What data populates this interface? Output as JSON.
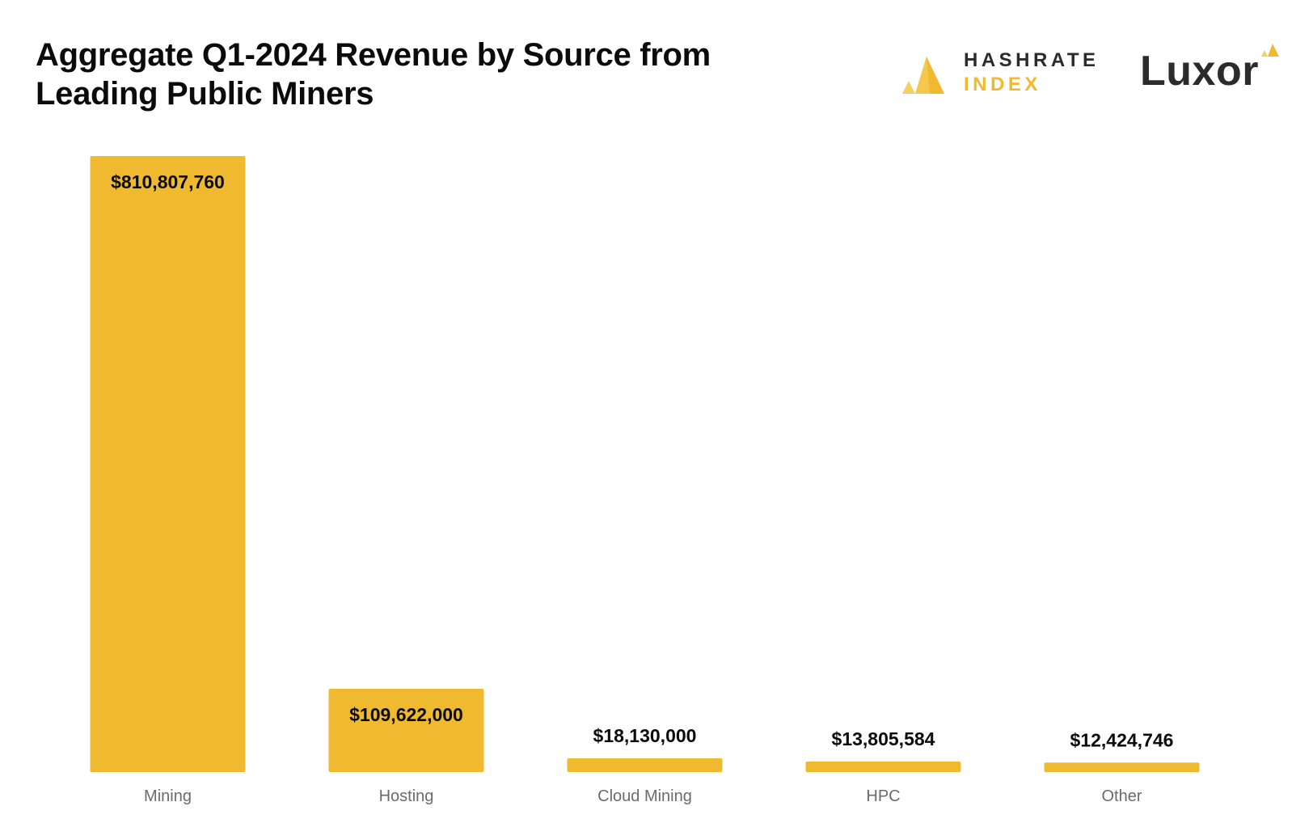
{
  "header": {
    "title_line1": "Aggregate Q1-2024 Revenue by Source from",
    "title_line2": "Leading Public Miners"
  },
  "logos": {
    "hashrate_index_line1": "HASHRATE",
    "hashrate_index_line2": "INDEX",
    "hashrate_index_icon": "hashrate-index-triangle-icon",
    "luxor_text": "Luxor",
    "luxor_icon": "luxor-triangle-icon"
  },
  "colors": {
    "bar": "#efba2f",
    "label": "#0b0b0b",
    "tick": "#6b6b6b",
    "brand_dark": "#2b2b2b",
    "brand_gold": "#f0ba2f"
  },
  "chart_data": {
    "type": "bar",
    "title": "Aggregate Q1-2024 Revenue by Source from Leading Public Miners",
    "categories": [
      "Mining",
      "Hosting",
      "Cloud Mining",
      "HPC",
      "Other"
    ],
    "values": [
      810807760,
      109622000,
      18130000,
      13805584,
      12424746
    ],
    "value_labels": [
      "$810,807,760",
      "$109,622,000",
      "$18,130,000",
      "$13,805,584",
      "$12,424,746"
    ],
    "xlabel": "",
    "ylabel": "",
    "ylim": [
      0,
      810807760
    ],
    "grid": false,
    "legend": "none"
  }
}
